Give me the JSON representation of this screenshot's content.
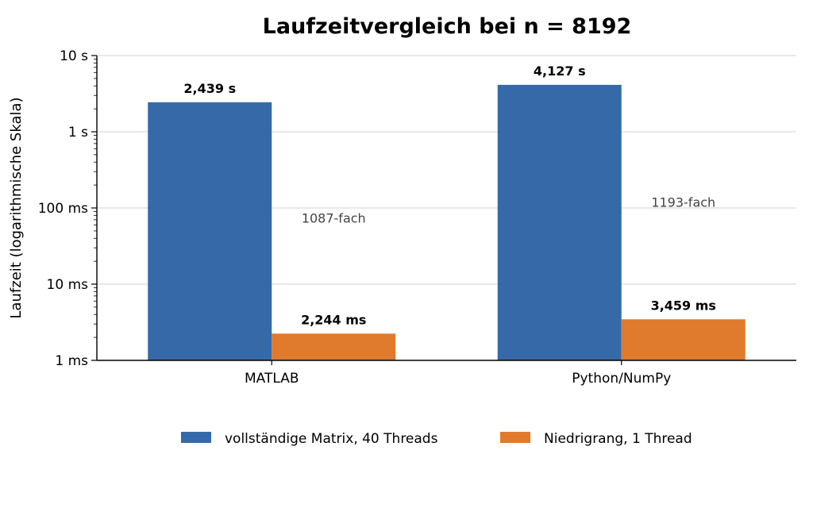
{
  "chart_data": {
    "type": "bar",
    "title": "Laufzeitvergleich bei n = 8192",
    "xlabel": "",
    "ylabel": "Laufzeit (logarithmische Skala)",
    "yscale": "log",
    "ylim_seconds": [
      0.001,
      10
    ],
    "yticks": [
      {
        "value": 10,
        "label": "10 s"
      },
      {
        "value": 1,
        "label": "1 s"
      },
      {
        "value": 0.1,
        "label": "100 ms"
      },
      {
        "value": 0.01,
        "label": "10 ms"
      },
      {
        "value": 0.001,
        "label": "1 ms"
      }
    ],
    "categories": [
      "MATLAB",
      "Python/NumPy"
    ],
    "series": [
      {
        "name": "vollständige Matrix, 40 Threads",
        "color": "#3669a8",
        "values": [
          2.439,
          4.127
        ],
        "labels": [
          "2,439 s",
          "4,127 s"
        ]
      },
      {
        "name": "Niedrigrang, 1 Thread",
        "color": "#e07a2c",
        "values": [
          0.002244,
          0.003459
        ],
        "labels": [
          "2,244 ms",
          "3,459 ms"
        ]
      }
    ],
    "annotations": [
      "1087-fach",
      "1193-fach"
    ],
    "grid": "horizontal",
    "legend_position": "bottom"
  }
}
